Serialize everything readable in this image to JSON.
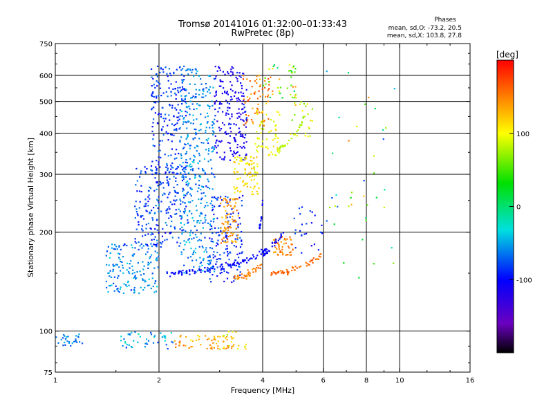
{
  "chart_data": {
    "type": "scatter",
    "title": "Tromsø 20141016 01:32:00–01:33:43",
    "subtitle": "RwPretec (8p)",
    "xlabel": "Frequency [MHz]",
    "ylabel": "Stationary phase Virtual Height [km]",
    "x_scale": "log",
    "y_scale": "log",
    "xlim": [
      1,
      16
    ],
    "ylim": [
      75,
      750
    ],
    "x_ticks": [
      {
        "value": 1,
        "label": "1"
      },
      {
        "value": 2,
        "label": "2"
      },
      {
        "value": 4,
        "label": "4"
      },
      {
        "value": 6,
        "label": "6"
      },
      {
        "value": 8,
        "label": "8"
      },
      {
        "value": 10,
        "label": "10"
      },
      {
        "value": 16,
        "label": "16"
      }
    ],
    "x_grid": [
      2,
      4,
      6,
      8,
      10
    ],
    "y_ticks": [
      {
        "value": 75,
        "label": "75"
      },
      {
        "value": 100,
        "label": "100"
      },
      {
        "value": 200,
        "label": "200"
      },
      {
        "value": 300,
        "label": "300"
      },
      {
        "value": 400,
        "label": "400"
      },
      {
        "value": 500,
        "label": "500"
      },
      {
        "value": 600,
        "label": "600"
      },
      {
        "value": 750,
        "label": "750"
      }
    ],
    "y_grid": [
      100,
      200,
      300,
      400,
      500,
      600
    ],
    "grid": true,
    "stats": {
      "heading": "Phases",
      "line_o": "mean, sd,O: -73.2, 20.5",
      "line_x": "mean, sd,X: 103.8, 27.8"
    },
    "colorbar": {
      "label": "[deg]",
      "range": [
        -200,
        200
      ],
      "ticks": [
        {
          "value": 100,
          "label": "100"
        },
        {
          "value": 0,
          "label": "0"
        },
        {
          "value": -100,
          "label": "-100"
        }
      ]
    },
    "point_clusters": [
      {
        "fmin": 1.0,
        "fmax": 1.2,
        "hmin": 90,
        "hmax": 98,
        "phase": -60,
        "spread": 15,
        "n": 30
      },
      {
        "fmin": 1.55,
        "fmax": 2.2,
        "hmin": 88,
        "hmax": 100,
        "phase": -50,
        "spread": 30,
        "n": 45
      },
      {
        "fmin": 2.2,
        "fmax": 3.3,
        "hmin": 88,
        "hmax": 97,
        "phase": 140,
        "spread": 25,
        "n": 60
      },
      {
        "fmin": 3.0,
        "fmax": 3.6,
        "hmin": 88,
        "hmax": 100,
        "phase": 110,
        "spread": 40,
        "n": 20
      },
      {
        "fmin": 1.4,
        "fmax": 2.0,
        "hmin": 130,
        "hmax": 185,
        "phase": -60,
        "spread": 25,
        "n": 160
      },
      {
        "fmin": 1.7,
        "fmax": 2.4,
        "hmin": 180,
        "hmax": 320,
        "phase": -80,
        "spread": 25,
        "n": 220
      },
      {
        "fmin": 1.9,
        "fmax": 2.4,
        "hmin": 300,
        "hmax": 640,
        "phase": -85,
        "spread": 20,
        "n": 200
      },
      {
        "fmin": 2.3,
        "fmax": 2.9,
        "hmin": 150,
        "hmax": 330,
        "phase": -60,
        "spread": 25,
        "n": 230
      },
      {
        "fmin": 2.3,
        "fmax": 2.9,
        "hmin": 330,
        "hmax": 640,
        "phase": -60,
        "spread": 20,
        "n": 180
      },
      {
        "fmin": 2.8,
        "fmax": 3.5,
        "hmin": 140,
        "hmax": 260,
        "phase": -90,
        "spread": 25,
        "n": 150
      },
      {
        "fmin": 2.9,
        "fmax": 3.6,
        "hmin": 330,
        "hmax": 640,
        "phase": -110,
        "spread": 20,
        "n": 200
      },
      {
        "fmin": 3.0,
        "fmax": 3.4,
        "hmin": 185,
        "hmax": 260,
        "phase": 140,
        "spread": 20,
        "n": 80
      },
      {
        "fmin": 3.3,
        "fmax": 3.9,
        "hmin": 260,
        "hmax": 340,
        "phase": 110,
        "spread": 20,
        "n": 90
      },
      {
        "fmin": 3.5,
        "fmax": 4.3,
        "hmin": 420,
        "hmax": 600,
        "phase": 150,
        "spread": 25,
        "n": 70
      },
      {
        "fmin": 3.8,
        "fmax": 4.5,
        "hmin": 340,
        "hmax": 470,
        "phase": 100,
        "spread": 20,
        "n": 60
      },
      {
        "fmin": 4.0,
        "fmax": 5.0,
        "hmin": 510,
        "hmax": 660,
        "phase": 60,
        "spread": 60,
        "n": 40
      },
      {
        "fmin": 4.3,
        "fmax": 4.9,
        "hmin": 170,
        "hmax": 195,
        "phase": 150,
        "spread": 15,
        "n": 50
      },
      {
        "fmin": 4.8,
        "fmax": 5.6,
        "hmin": 390,
        "hmax": 500,
        "phase": 90,
        "spread": 30,
        "n": 25
      },
      {
        "fmin": 4.9,
        "fmax": 6.0,
        "hmin": 170,
        "hmax": 240,
        "phase": -90,
        "spread": 20,
        "n": 25
      },
      {
        "fmin": 6.0,
        "fmax": 10.0,
        "hmin": 120,
        "hmax": 650,
        "phase": 40,
        "spread": 120,
        "n": 40
      }
    ],
    "traces": [
      {
        "f0": 2.1,
        "f1": 4.2,
        "h0": 150,
        "h1": 175,
        "phase": -100,
        "spread": 10,
        "n": 90,
        "jitter": 3
      },
      {
        "f0": 3.3,
        "f1": 4.0,
        "h0": 145,
        "h1": 160,
        "phase": 150,
        "spread": 15,
        "n": 40,
        "jitter": 3
      },
      {
        "f0": 3.9,
        "f1": 4.6,
        "h0": 175,
        "h1": 200,
        "phase": -100,
        "spread": 10,
        "n": 25,
        "jitter": 3
      },
      {
        "f0": 4.2,
        "f1": 5.9,
        "h0": 150,
        "h1": 170,
        "phase": 160,
        "spread": 12,
        "n": 60,
        "jitter": 3
      },
      {
        "f0": 3.9,
        "f1": 4.0,
        "h0": 205,
        "h1": 250,
        "phase": -100,
        "spread": 10,
        "n": 18,
        "jitter": 4
      },
      {
        "f0": 4.4,
        "f1": 5.3,
        "h0": 360,
        "h1": 450,
        "phase": 80,
        "spread": 10,
        "n": 30,
        "jitter": 6
      }
    ]
  }
}
